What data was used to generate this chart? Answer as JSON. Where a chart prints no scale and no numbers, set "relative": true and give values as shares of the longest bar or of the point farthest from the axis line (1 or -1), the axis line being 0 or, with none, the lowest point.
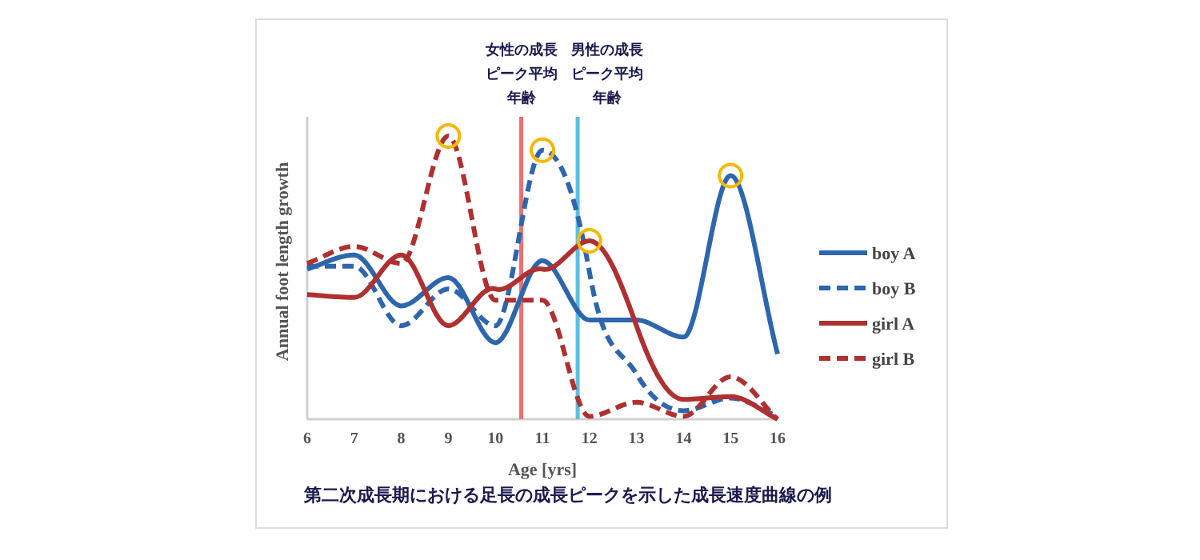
{
  "chart_data": {
    "type": "line",
    "relative": true,
    "xlabel": "Age [yrs]",
    "ylabel": "Annual foot length growth",
    "x": [
      6,
      7,
      8,
      9,
      10,
      11,
      12,
      13,
      14,
      15,
      16
    ],
    "xlim": [
      6,
      16
    ],
    "xticks": [
      6,
      7,
      8,
      9,
      10,
      11,
      12,
      13,
      14,
      15,
      16
    ],
    "series": [
      {
        "name": "boy A",
        "color": "#2e66ae",
        "line_style": "solid",
        "values": [
          0.53,
          0.58,
          0.4,
          0.5,
          0.27,
          0.56,
          0.35,
          0.35,
          0.29,
          0.86,
          0.23
        ]
      },
      {
        "name": "boy B",
        "color": "#2e66ae",
        "line_style": "dashed",
        "values": [
          0.54,
          0.54,
          0.33,
          0.46,
          0.33,
          0.95,
          0.52,
          0.16,
          0.03,
          0.075,
          0.01
        ]
      },
      {
        "name": "girl A",
        "color": "#b03030",
        "line_style": "solid",
        "values": [
          0.44,
          0.43,
          0.58,
          0.33,
          0.46,
          0.53,
          0.63,
          0.33,
          0.07,
          0.08,
          0
        ]
      },
      {
        "name": "girl B",
        "color": "#b03030",
        "line_style": "dashed",
        "values": [
          0.55,
          0.61,
          0.55,
          1,
          0.42,
          0.42,
          0.01,
          0.06,
          0.01,
          0.15,
          0
        ]
      }
    ],
    "ref_lines": [
      {
        "axis": "x",
        "value": 10.55,
        "label": "女性の成長ピーク平均年齢",
        "color": "#f07070"
      },
      {
        "axis": "x",
        "value": 11.75,
        "label": "男性の成長ピーク平均年齢",
        "color": "#5bc0e0"
      }
    ],
    "legend": "right",
    "annotations": [
      "第二次成長期における足長の成長ピークを示した成長速度曲線の例"
    ]
  }
}
